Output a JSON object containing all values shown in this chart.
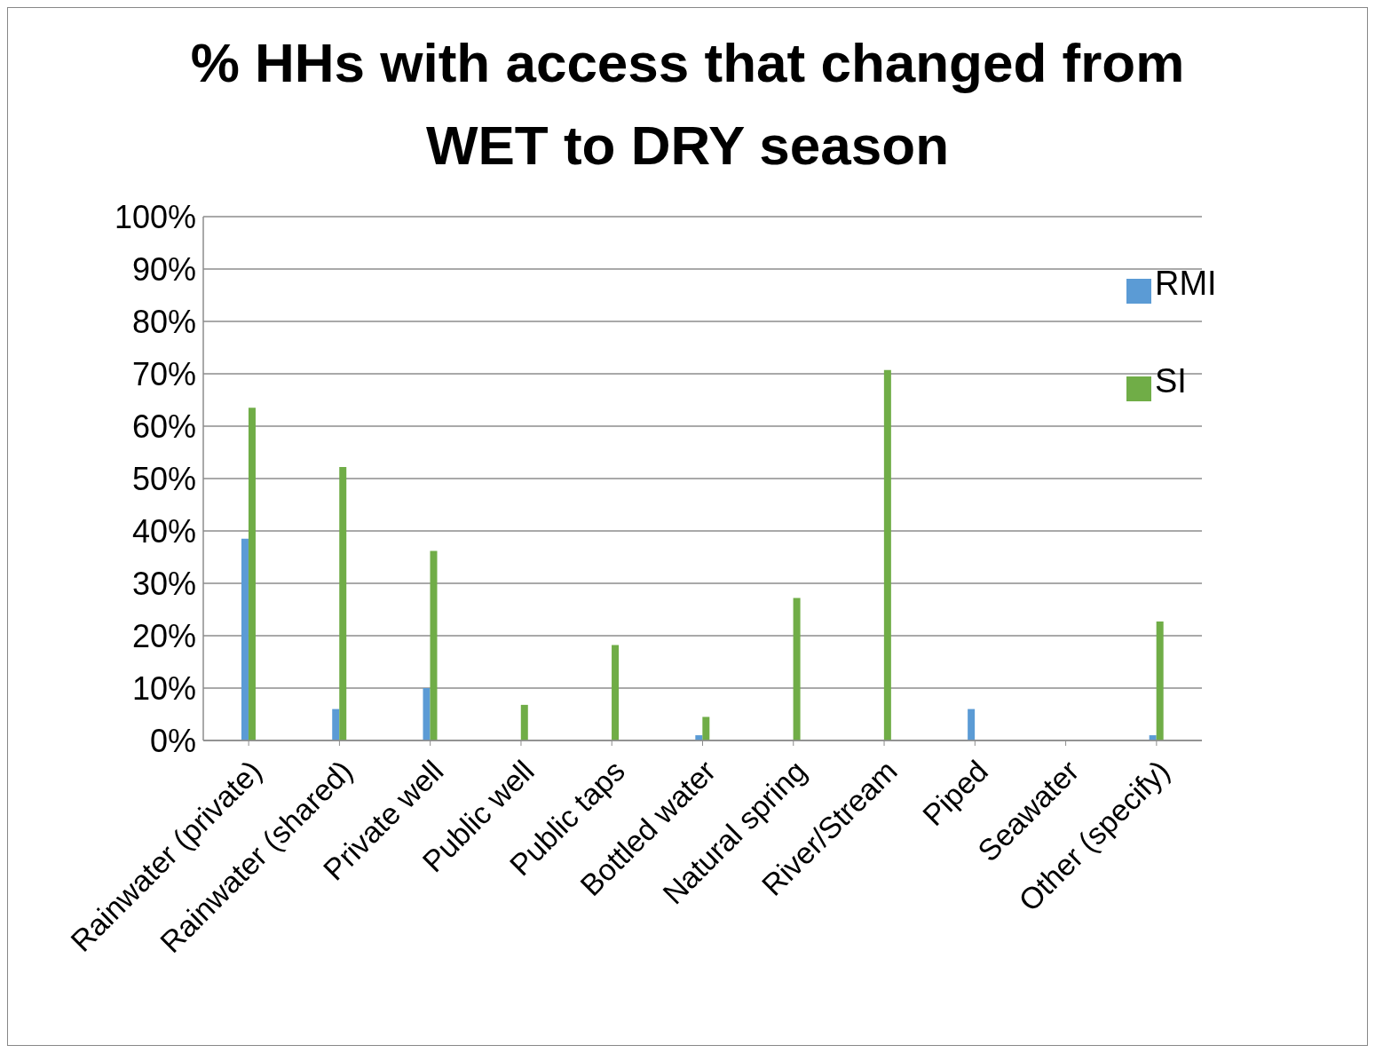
{
  "chart_data": {
    "type": "bar",
    "title": "% HHs with access that changed from WET to DRY season",
    "categories": [
      "Rainwater (private)",
      "Rainwater (shared)",
      "Private well",
      "Public well",
      "Public taps",
      "Bottled water",
      "Natural spring",
      "River/Stream",
      "Piped",
      "Seawater",
      "Other (specify)"
    ],
    "series": [
      {
        "name": "RMI",
        "color": "#5b9bd5",
        "values": [
          38.5,
          6,
          10,
          0,
          0,
          1,
          0,
          0,
          6,
          0,
          1
        ]
      },
      {
        "name": "SI",
        "color": "#70ad47",
        "values": [
          63.5,
          52.2,
          36.2,
          6.8,
          18.2,
          4.5,
          27.2,
          70.7,
          0,
          0,
          22.7
        ]
      }
    ],
    "ylim": [
      0,
      100
    ],
    "yticks": [
      {
        "value": 0,
        "label": "0%"
      },
      {
        "value": 10,
        "label": "10%"
      },
      {
        "value": 20,
        "label": "20%"
      },
      {
        "value": 30,
        "label": "30%"
      },
      {
        "value": 40,
        "label": "40%"
      },
      {
        "value": 50,
        "label": "50%"
      },
      {
        "value": 60,
        "label": "60%"
      },
      {
        "value": 70,
        "label": "70%"
      },
      {
        "value": 80,
        "label": "80%"
      },
      {
        "value": 90,
        "label": "90%"
      },
      {
        "value": 100,
        "label": "100%"
      }
    ],
    "grid": "y",
    "legend": "top right"
  }
}
